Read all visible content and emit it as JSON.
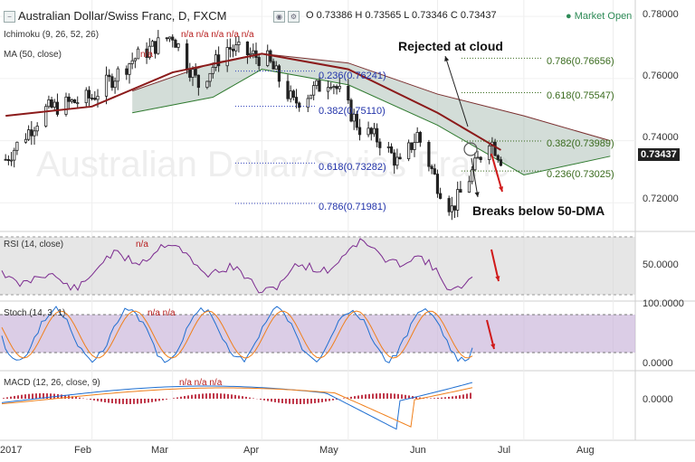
{
  "header": {
    "title": "Australian Dollar/Swiss Franc, D, FXCM",
    "ohlc": "O 0.73386 H 0.73565 L 0.73346 C 0.73437",
    "market_status": "Market Open",
    "status_color": "#2e8b57"
  },
  "watermark": "Australian Dollar/Swiss Franc",
  "indicators": {
    "ichimoku": "Ichimoku (9, 26, 52, 26)",
    "ma": "MA (50, close)",
    "rsi": "RSI (14, close)",
    "stoch": "Stoch (14, 3, 1)",
    "macd": "MACD (12, 26, close, 9)",
    "na": "n/a"
  },
  "annotations": {
    "rejected": "Rejected at cloud",
    "breaks": "Breaks below 50-DMA"
  },
  "price_axis": {
    "ticks": [
      "0.78000",
      "0.76000",
      "0.74000",
      "0.72000"
    ],
    "last_price": "0.73437"
  },
  "rsi_axis": {
    "ticks": [
      "50.0000"
    ]
  },
  "stoch_axis": {
    "ticks": [
      "100.0000",
      "0.0000"
    ]
  },
  "macd_axis": {
    "ticks": [
      "0.0000"
    ]
  },
  "time_axis": {
    "ticks": [
      "2017",
      "Feb",
      "Mar",
      "Apr",
      "May",
      "Jun",
      "Jul",
      "Aug"
    ]
  },
  "fib_left": [
    {
      "label": "0.236(0.76241)",
      "value": 0.76241
    },
    {
      "label": "0.382(0.75110)",
      "value": 0.7511
    },
    {
      "label": "0.618(0.73282)",
      "value": 0.73282
    },
    {
      "label": "0.786(0.71981)",
      "value": 0.71981
    }
  ],
  "fib_right": [
    {
      "label": "0.786(0.76656)",
      "value": 0.76656
    },
    {
      "label": "0.618(0.75547)",
      "value": 0.75547
    },
    {
      "label": "0.382(0.73989)",
      "value": 0.73989
    },
    {
      "label": "0.236(0.73025)",
      "value": 0.73025
    }
  ],
  "chart_data": {
    "type": "candlestick",
    "title": "Australian Dollar/Swiss Franc, D, FXCM",
    "x_ticks": [
      "2017",
      "Feb",
      "Mar",
      "Apr",
      "May",
      "Jun",
      "Jul",
      "Aug"
    ],
    "price_range": [
      0.712,
      0.782
    ],
    "price": [
      {
        "date": "2017-01-02",
        "close": 0.734
      },
      {
        "date": "2017-01-16",
        "close": 0.75
      },
      {
        "date": "2017-02-01",
        "close": 0.754
      },
      {
        "date": "2017-02-15",
        "close": 0.766
      },
      {
        "date": "2017-03-01",
        "close": 0.774
      },
      {
        "date": "2017-03-10",
        "close": 0.758
      },
      {
        "date": "2017-03-20",
        "close": 0.77
      },
      {
        "date": "2017-04-03",
        "close": 0.766
      },
      {
        "date": "2017-04-12",
        "close": 0.752
      },
      {
        "date": "2017-04-25",
        "close": 0.76
      },
      {
        "date": "2017-05-05",
        "close": 0.744
      },
      {
        "date": "2017-05-12",
        "close": 0.74
      },
      {
        "date": "2017-05-19",
        "close": 0.732
      },
      {
        "date": "2017-05-25",
        "close": 0.742
      },
      {
        "date": "2017-06-01",
        "close": 0.726
      },
      {
        "date": "2017-06-06",
        "close": 0.718
      },
      {
        "date": "2017-06-12",
        "close": 0.728
      },
      {
        "date": "2017-06-19",
        "close": 0.741
      },
      {
        "date": "2017-06-23",
        "close": 0.73437
      }
    ],
    "ma50": [
      {
        "date": "2017-01-02",
        "value": 0.748
      },
      {
        "date": "2017-02-01",
        "value": 0.751
      },
      {
        "date": "2017-03-01",
        "value": 0.762
      },
      {
        "date": "2017-04-01",
        "value": 0.768
      },
      {
        "date": "2017-05-01",
        "value": 0.763
      },
      {
        "date": "2017-06-01",
        "value": 0.749
      },
      {
        "date": "2017-06-23",
        "value": 0.737
      }
    ],
    "cloud_upper": [
      {
        "date": "2017-02-15",
        "value": 0.756
      },
      {
        "date": "2017-03-15",
        "value": 0.765
      },
      {
        "date": "2017-04-01",
        "value": 0.768
      },
      {
        "date": "2017-05-01",
        "value": 0.765
      },
      {
        "date": "2017-06-01",
        "value": 0.755
      },
      {
        "date": "2017-07-01",
        "value": 0.748
      },
      {
        "date": "2017-07-31",
        "value": 0.74
      }
    ],
    "cloud_lower": [
      {
        "date": "2017-02-15",
        "value": 0.749
      },
      {
        "date": "2017-03-15",
        "value": 0.754
      },
      {
        "date": "2017-04-01",
        "value": 0.763
      },
      {
        "date": "2017-05-01",
        "value": 0.758
      },
      {
        "date": "2017-06-01",
        "value": 0.745
      },
      {
        "date": "2017-07-01",
        "value": 0.729
      },
      {
        "date": "2017-07-31",
        "value": 0.735
      }
    ],
    "rsi": {
      "range": [
        20,
        85
      ],
      "levels": [
        30,
        70
      ],
      "last": 53
    },
    "stoch": {
      "range": [
        0,
        100
      ],
      "levels": [
        20,
        80
      ]
    },
    "macd": {
      "zero": 0
    }
  }
}
